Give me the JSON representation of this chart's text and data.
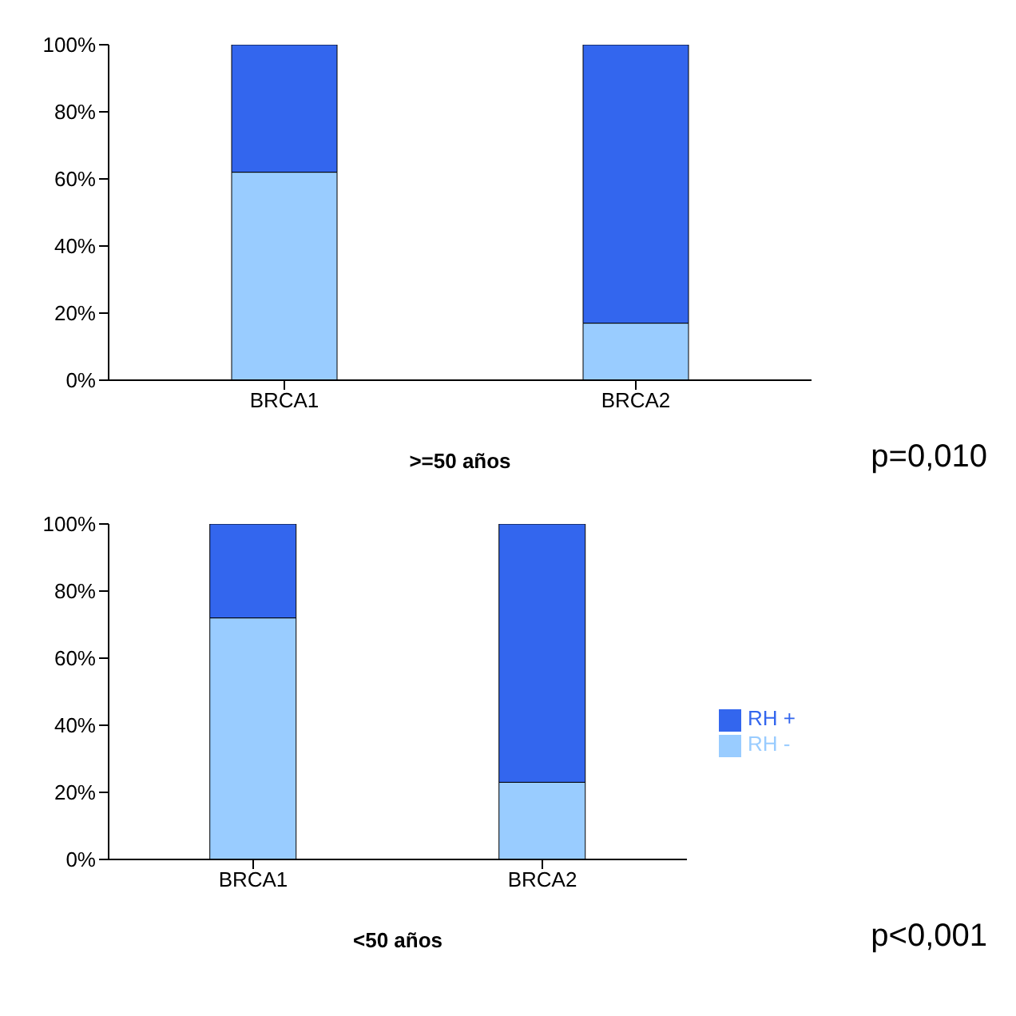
{
  "chart_data": [
    {
      "type": "bar",
      "stacked": true,
      "categories": [
        "BRCA1",
        "BRCA2"
      ],
      "xlabel": ">=50 años",
      "ylim": [
        0,
        100
      ],
      "yticks": [
        {
          "value": 0,
          "label": "0%"
        },
        {
          "value": 20,
          "label": "20%"
        },
        {
          "value": 40,
          "label": "40%"
        },
        {
          "value": 60,
          "label": "60%"
        },
        {
          "value": 80,
          "label": "80%"
        },
        {
          "value": 100,
          "label": "100%"
        }
      ],
      "grid": false,
      "legend": false,
      "annotations": [
        "p=0,010"
      ],
      "series": [
        {
          "color": "#99ccff",
          "values": [
            62,
            17
          ]
        },
        {
          "color": "#3366ee",
          "values": [
            38,
            83
          ]
        }
      ]
    },
    {
      "type": "bar",
      "stacked": true,
      "categories": [
        "BRCA1",
        "BRCA2"
      ],
      "xlabel": "<50 años",
      "ylim": [
        0,
        100
      ],
      "yticks": [
        {
          "value": 0,
          "label": "0%"
        },
        {
          "value": 20,
          "label": "20%"
        },
        {
          "value": 40,
          "label": "40%"
        },
        {
          "value": 60,
          "label": "60%"
        },
        {
          "value": 80,
          "label": "80%"
        },
        {
          "value": 100,
          "label": "100%"
        }
      ],
      "grid": false,
      "legend": "right",
      "annotations": [
        "p<0,001"
      ],
      "series": [
        {
          "name": "RH -",
          "color": "#99ccff",
          "values": [
            72,
            23
          ]
        },
        {
          "name": "RH +",
          "color": "#3366ee",
          "values": [
            28,
            77
          ]
        }
      ]
    }
  ]
}
